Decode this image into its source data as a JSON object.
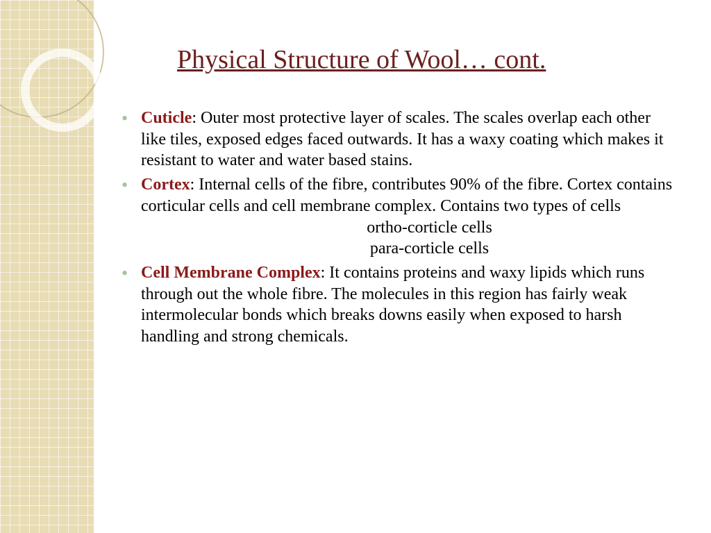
{
  "title": "Physical Structure of Wool… cont.",
  "bullets": [
    {
      "term": "Cuticle",
      "body": ": Outer most protective layer of scales. The scales overlap each other like tiles, exposed edges faced outwards. It has a waxy coating which makes it resistant to water and water based stains."
    },
    {
      "term": "Cortex",
      "body": ": Internal cells of the fibre, contributes 90% of the fibre. Cortex contains corticular cells and cell membrane complex.  Contains two types of cells",
      "sub1": "ortho-corticle cells",
      "sub2": "para-corticle cells"
    },
    {
      "term": "Cell Membrane Complex",
      "body": ": It contains proteins and waxy lipids which runs through out the whole fibre. The molecules in this region has fairly weak intermolecular bonds which breaks downs easily when exposed to harsh handling and strong chemicals."
    }
  ],
  "colors": {
    "title_color": "#6b1f1f",
    "term_color": "#8b1a1a",
    "bullet_color": "#a8c0a0",
    "sidebar_bg": "#e8dcb5",
    "body_text": "#000000"
  }
}
